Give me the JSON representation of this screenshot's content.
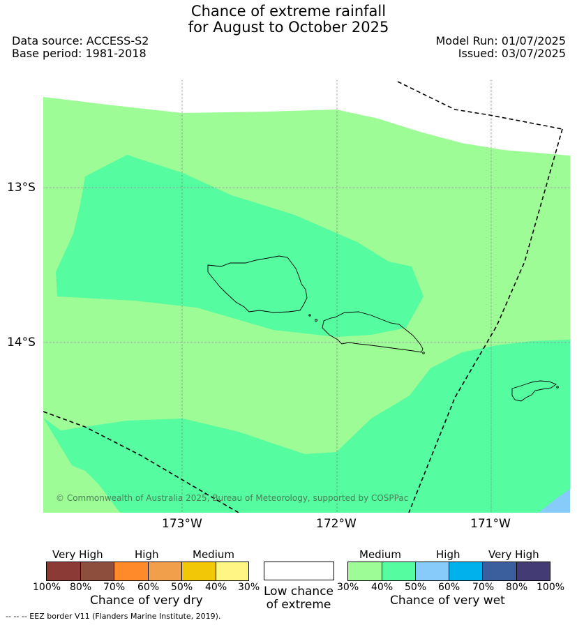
{
  "title": {
    "line1": "Chance of extreme rainfall",
    "line2": "for August to October 2025"
  },
  "info": {
    "data_source": "Data source: ACCESS-S2",
    "base_period": "Base period: 1981-2018",
    "model_run": "Model Run: 01/07/2025",
    "issued": "Issued: 03/07/2025"
  },
  "map": {
    "lat_labels": [
      "13°S",
      "14°S"
    ],
    "lon_labels": [
      "173°W",
      "172°W",
      "171°W"
    ],
    "copyright": "© Commonwealth of Australia 2025, Bureau of Meteorology, supported by COSPPac",
    "colors": {
      "medium_wet_30_40": "#9efc96",
      "medium_wet_40_50": "#55fca0",
      "high_wet_50_60": "#87cbfa"
    }
  },
  "legend": {
    "dry": {
      "headers": [
        "Very High",
        "High",
        "Medium"
      ],
      "ticks": [
        "100%",
        "80%",
        "70%",
        "60%",
        "50%",
        "40%",
        "30%"
      ],
      "caption": "Chance of very dry",
      "colors": [
        "#8b3a35",
        "#8d4e3e",
        "#ff8a2a",
        "#f19f4a",
        "#f2c707",
        "#fef584"
      ]
    },
    "low": {
      "caption_line1": "Low chance",
      "caption_line2": "of extreme"
    },
    "wet": {
      "headers": [
        "Medium",
        "High",
        "Very High"
      ],
      "ticks": [
        "30%",
        "40%",
        "50%",
        "60%",
        "70%",
        "80%",
        "100%"
      ],
      "caption": "Chance of very wet",
      "colors": [
        "#9efc96",
        "#55fca0",
        "#87cbfa",
        "#00b1ec",
        "#3a5f9c",
        "#423b74"
      ]
    }
  },
  "footer": "--  --  -- EEZ border V11 (Flanders Marine Institute, 2019)."
}
